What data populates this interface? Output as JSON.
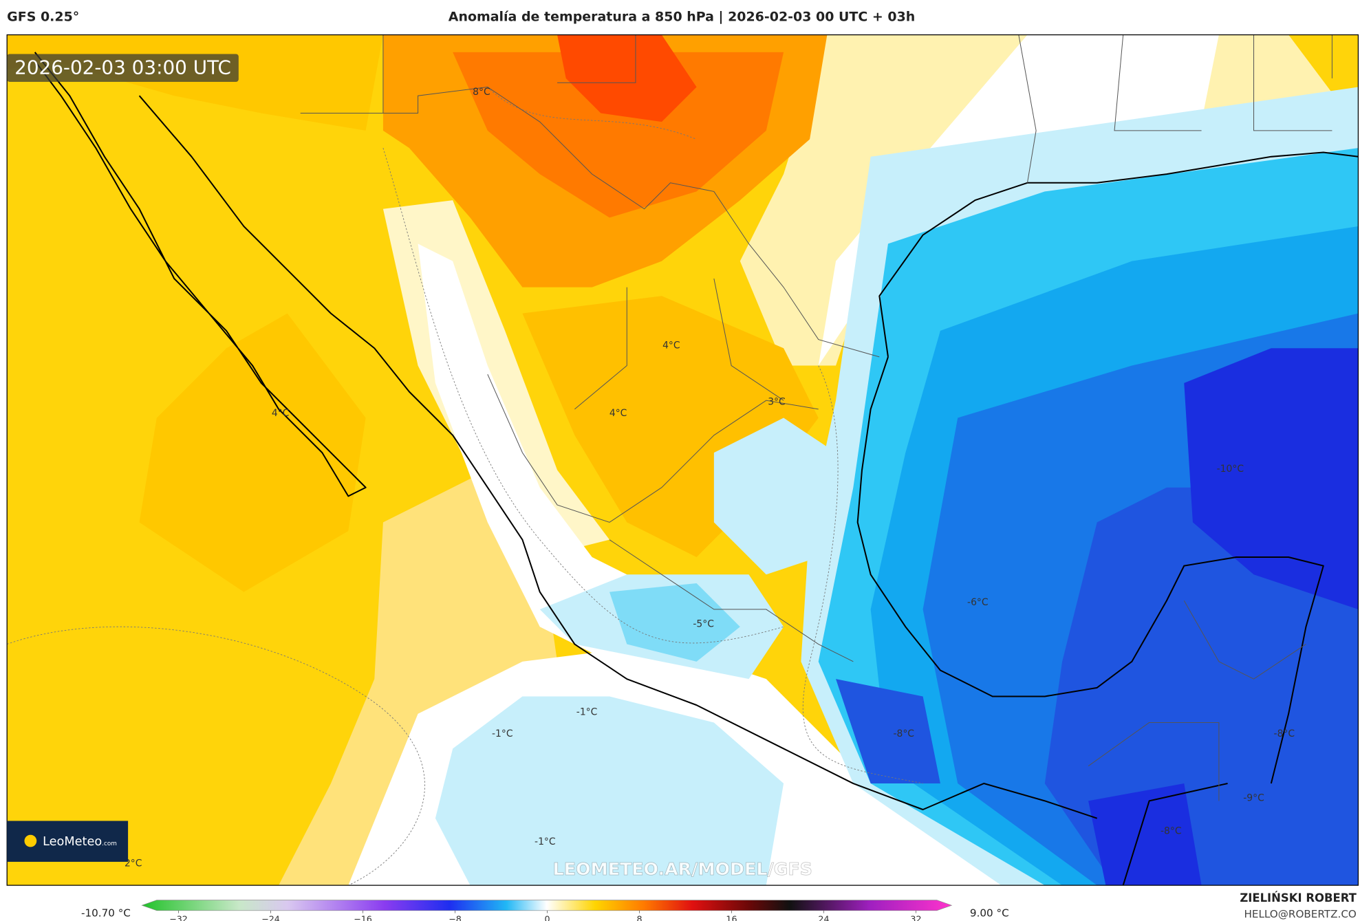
{
  "header": {
    "model": "GFS 0.25°",
    "title": "Anomalía de temperatura a 850 hPa | 2026-02-03 00 UTC + 03h"
  },
  "map": {
    "timestamp": "2026-02-03 03:00 UTC",
    "contour_labels": [
      "8°C",
      "4°C",
      "4°C",
      "3°C",
      "4°C",
      "-10°C",
      "-6°C",
      "-5°C",
      "-1°C",
      "-1°C",
      "-8°C",
      "-8°C",
      "-9°C",
      "-8°C",
      "-1°C",
      "2°C"
    ],
    "logo": {
      "brand": "LeoMeteo",
      "suffix": ".com"
    },
    "watermark": "LEOMETEO.AR/MODEL/GFS"
  },
  "colorbar": {
    "min_label": "-10.70 °C",
    "max_label": "9.00 °C",
    "ticks": [
      "−32",
      "−24",
      "−16",
      "−8",
      "0",
      "8",
      "16",
      "24",
      "32"
    ]
  },
  "credits": {
    "author": "ZIELIŃSKI ROBERT",
    "contact": "HELLO@ROBERTZ.CO"
  }
}
